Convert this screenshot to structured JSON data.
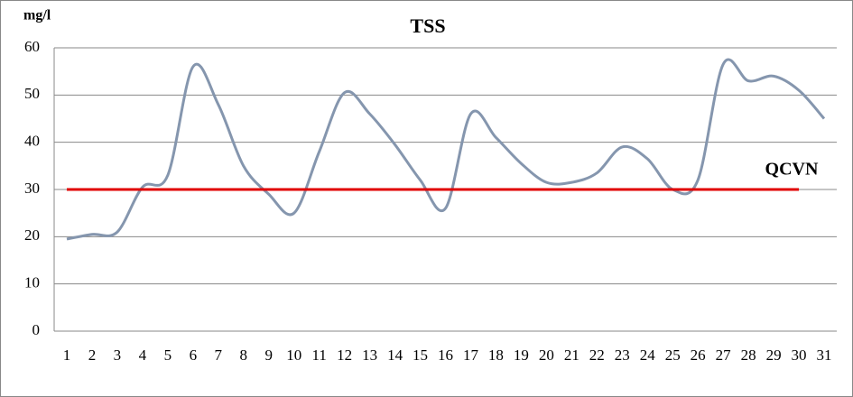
{
  "chart_data": {
    "type": "line",
    "title": "TSS",
    "y_label": "mg/l",
    "annotation": "QCVN",
    "categories": [
      "1",
      "2",
      "3",
      "4",
      "5",
      "6",
      "7",
      "8",
      "9",
      "10",
      "11",
      "12",
      "13",
      "14",
      "15",
      "16",
      "17",
      "18",
      "19",
      "20",
      "21",
      "22",
      "23",
      "24",
      "25",
      "26",
      "27",
      "28",
      "29",
      "30",
      "31"
    ],
    "series": [
      {
        "color": "#8596ae",
        "smooth": true,
        "values": [
          19.5,
          20.5,
          21,
          30.5,
          33,
          56,
          48,
          35,
          29,
          25,
          38,
          50.5,
          46,
          39.5,
          32,
          26,
          46,
          41,
          35.5,
          31.5,
          31.5,
          33.5,
          39,
          36.5,
          30,
          32,
          56.5,
          53,
          54,
          51,
          45
        ]
      },
      {
        "color": "#e00000",
        "smooth": false,
        "values": [
          30,
          30,
          30,
          30,
          30,
          30,
          30,
          30,
          30,
          30,
          30,
          30,
          30,
          30,
          30,
          30,
          30,
          30,
          30,
          30,
          30,
          30,
          30,
          30,
          30,
          30,
          30,
          30,
          30,
          30,
          null
        ]
      }
    ],
    "ylim": [
      0,
      60
    ],
    "yticks": [
      0,
      10,
      20,
      30,
      40,
      50,
      60
    ],
    "grid": true
  }
}
